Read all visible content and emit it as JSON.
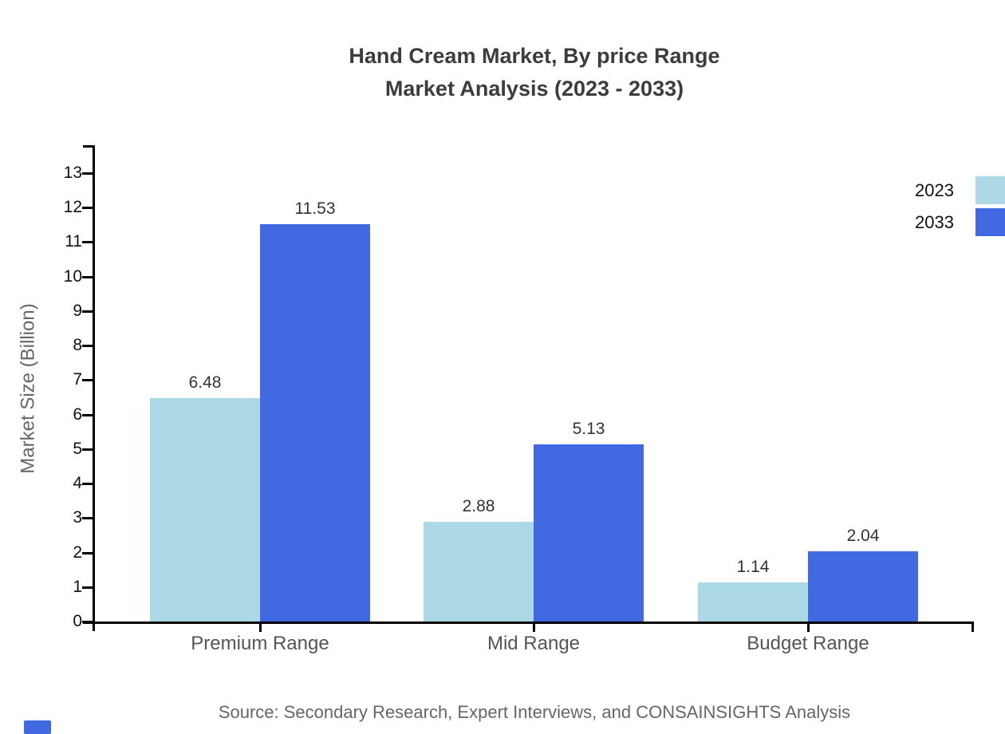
{
  "title": {
    "line1": "Hand Cream Market, By price Range",
    "line2": "Market Analysis (2023 - 2033)"
  },
  "source": "Source: Secondary Research, Expert Interviews, and CONSAINSIGHTS Analysis",
  "chart_data": {
    "type": "bar",
    "categories": [
      "Premium Range",
      "Mid Range",
      "Budget Range"
    ],
    "series": [
      {
        "name": "2023",
        "color": "#ADD8E6",
        "values": [
          6.48,
          2.88,
          1.14
        ]
      },
      {
        "name": "2033",
        "color": "#4169E1",
        "values": [
          11.53,
          5.13,
          2.04
        ]
      }
    ],
    "title": "Hand Cream Market, By price Range Market Analysis (2023 - 2033)",
    "xlabel": "",
    "ylabel": "Market Size (Billion)",
    "ylim": [
      0,
      13
    ],
    "ytick_step": 1,
    "grid": false,
    "legend_position": "top-right",
    "value_labels": true
  },
  "colors": {
    "axis": "#000000",
    "title_text": "#3c3c3c",
    "tick_text": "#111111",
    "category_text": "#555555",
    "value_text": "#333333",
    "source_text": "#666666",
    "accent": "#4169E1"
  }
}
